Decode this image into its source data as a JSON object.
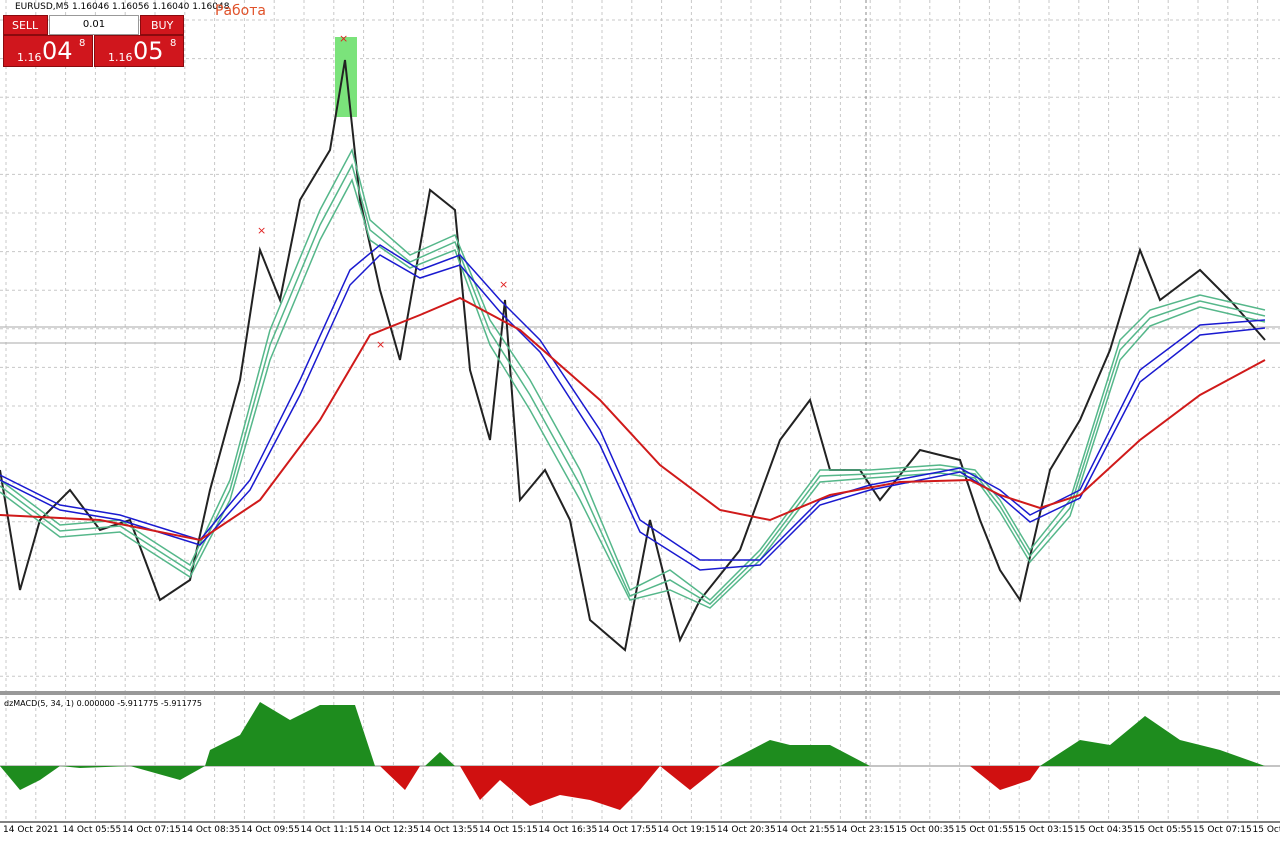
{
  "header": {
    "symbol_info": "EURUSD,M5  1.16046 1.16056 1.16040 1.16048",
    "label": "Работа"
  },
  "trade_panel": {
    "sell": "SELL",
    "lot": "0.01",
    "buy": "BUY",
    "sell_price": {
      "big": "1.16",
      "main": "04",
      "small": "8"
    },
    "buy_price": {
      "big": "1.16",
      "main": "05",
      "small": "8"
    }
  },
  "indicator": {
    "title": "dzMACD(5, 34, 1) 0.000000 -5.911775 -5.911775"
  },
  "time_axis": [
    "14 Oct 2021",
    "14 Oct 05:55",
    "14 Oct 07:15",
    "14 Oct 08:35",
    "14 Oct 09:55",
    "14 Oct 11:15",
    "14 Oct 12:35",
    "14 Oct 13:55",
    "14 Oct 15:15",
    "14 Oct 16:35",
    "14 Oct 17:55",
    "14 Oct 19:15",
    "14 Oct 20:35",
    "14 Oct 21:55",
    "14 Oct 23:15",
    "15 Oct 00:35",
    "15 Oct 01:55",
    "15 Oct 03:15",
    "15 Oct 04:35",
    "15 Oct 05:55",
    "15 Oct 07:15",
    "15 Oct"
  ]
}
